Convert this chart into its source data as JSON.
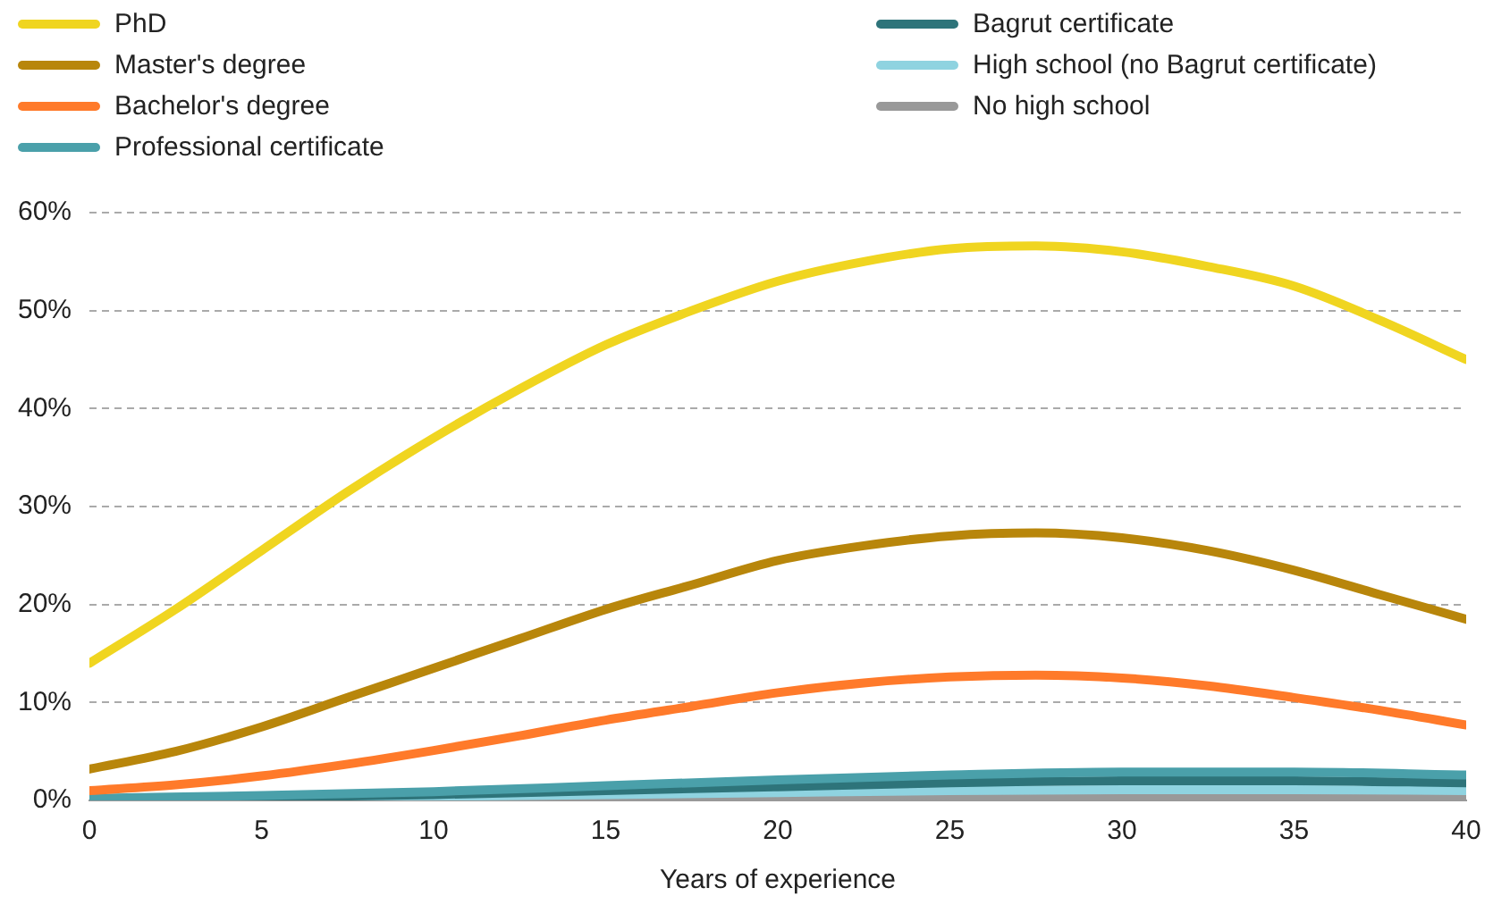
{
  "chart_data": {
    "type": "line",
    "xlabel": "Years of experience",
    "legend": "top",
    "grid": "y",
    "line_style": "solid",
    "marker": "none",
    "xlim": [
      0,
      40
    ],
    "xticks": [
      0,
      5,
      10,
      15,
      20,
      25,
      30,
      35,
      40
    ],
    "ylim": [
      0,
      60
    ],
    "yticks": [
      {
        "value": 0,
        "label": "0%"
      },
      {
        "value": 10,
        "label": "10%"
      },
      {
        "value": 20,
        "label": "20%"
      },
      {
        "value": 30,
        "label": "30%"
      },
      {
        "value": 40,
        "label": "40%"
      },
      {
        "value": 50,
        "label": "50%"
      },
      {
        "value": 60,
        "label": "60%"
      }
    ],
    "x": [
      0,
      2.5,
      5,
      7.5,
      10,
      12.5,
      15,
      17.5,
      20,
      22.5,
      25,
      27.5,
      30,
      32.5,
      35,
      37.5,
      40
    ],
    "series": [
      {
        "name": "PhD",
        "color": "#f0d520",
        "values": [
          14,
          19.5,
          25.5,
          31.5,
          37,
          42,
          46.5,
          50,
          53,
          55,
          56.3,
          56.6,
          56,
          54.5,
          52.5,
          49,
          45
        ]
      },
      {
        "name": "Master's degree",
        "color": "#b8860b",
        "values": [
          3.2,
          5,
          7.5,
          10.5,
          13.5,
          16.5,
          19.5,
          22,
          24.5,
          26,
          27,
          27.3,
          26.8,
          25.5,
          23.5,
          21,
          18.5
        ]
      },
      {
        "name": "Bachelor's degree",
        "color": "#ff7a2a",
        "values": [
          1,
          1.6,
          2.5,
          3.7,
          5.1,
          6.6,
          8.2,
          9.6,
          11,
          12,
          12.6,
          12.8,
          12.5,
          11.7,
          10.5,
          9.2,
          7.7
        ]
      },
      {
        "name": "Professional certificate",
        "color": "#4aa0aa",
        "x": [
          0,
          5,
          10,
          15,
          20,
          25,
          30,
          35,
          40
        ],
        "values": [
          0.2,
          0.5,
          0.9,
          1.5,
          2.1,
          2.6,
          2.9,
          2.9,
          2.6
        ]
      },
      {
        "name": "Bagrut certificate",
        "color": "#2e747a",
        "x": [
          0,
          5,
          10,
          15,
          20,
          25,
          30,
          35,
          40
        ],
        "values": [
          0.1,
          0.3,
          0.6,
          1,
          1.4,
          1.8,
          2,
          2,
          1.8
        ]
      },
      {
        "name": "High school (no Bagrut certificate)",
        "color": "#8fd3e0",
        "x": [
          0,
          5,
          10,
          15,
          20,
          25,
          30,
          35,
          40
        ],
        "values": [
          0.1,
          0.2,
          0.4,
          0.6,
          0.8,
          1,
          1.1,
          1.1,
          1
        ]
      },
      {
        "name": "No high school",
        "color": "#999999",
        "x": [
          0,
          5,
          10,
          15,
          20,
          25,
          30,
          35,
          40
        ],
        "values": [
          0,
          0.1,
          0.2,
          0.3,
          0.4,
          0.5,
          0.5,
          0.5,
          0.5
        ]
      }
    ]
  }
}
